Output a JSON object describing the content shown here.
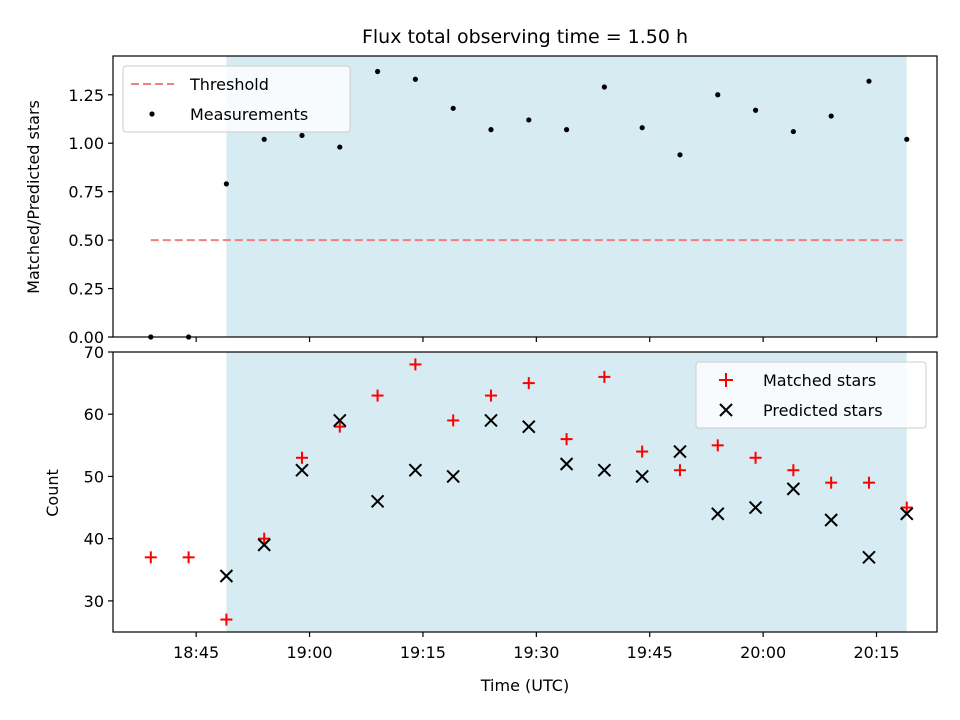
{
  "chart_data": [
    {
      "type": "scatter",
      "panel": "top",
      "title": "Flux total observing time = 1.50 h",
      "xlabel": "",
      "ylabel": "Matched/Predicted stars",
      "ylim": [
        0,
        1.45
      ],
      "xlim": [
        "18:34",
        "20:23"
      ],
      "yticks": [
        "0.00",
        "0.25",
        "0.50",
        "0.75",
        "1.00",
        "1.25"
      ],
      "ytick_values": [
        0,
        0.25,
        0.5,
        0.75,
        1.0,
        1.25
      ],
      "shaded_region": {
        "start": "18:49",
        "end": "20:19",
        "color": "#add8e6"
      },
      "threshold": {
        "name": "Threshold",
        "value": 0.5,
        "start": "18:39",
        "end": "20:19",
        "color": "#f08080"
      },
      "series": [
        {
          "name": "Measurements",
          "color": "#000000",
          "x": [
            "18:39",
            "18:44",
            "18:49",
            "18:54",
            "18:59",
            "19:04",
            "19:09",
            "19:14",
            "19:19",
            "19:24",
            "19:29",
            "19:34",
            "19:39",
            "19:44",
            "19:49",
            "19:54",
            "19:59",
            "20:04",
            "20:09",
            "20:14",
            "20:19"
          ],
          "y": [
            0.0,
            0.0,
            0.79,
            1.02,
            1.04,
            0.98,
            1.37,
            1.33,
            1.18,
            1.07,
            1.12,
            1.07,
            1.29,
            1.08,
            0.94,
            1.25,
            1.17,
            1.06,
            1.14,
            1.32,
            1.02
          ]
        }
      ],
      "legend": {
        "placement": "upper-left",
        "entries": [
          "Threshold",
          "Measurements"
        ]
      }
    },
    {
      "type": "scatter",
      "panel": "bottom",
      "title": "",
      "xlabel": "Time (UTC)",
      "ylabel": "Count",
      "ylim": [
        25,
        70
      ],
      "xlim": [
        "18:34",
        "20:23"
      ],
      "yticks": [
        "30",
        "40",
        "50",
        "60",
        "70"
      ],
      "ytick_values": [
        30,
        40,
        50,
        60,
        70
      ],
      "xticks": [
        "18:45",
        "19:00",
        "19:15",
        "19:30",
        "19:45",
        "20:00",
        "20:15"
      ],
      "shaded_region": {
        "start": "18:49",
        "end": "20:19",
        "color": "#add8e6"
      },
      "series": [
        {
          "name": "Matched stars",
          "marker": "+",
          "color": "#ff0000",
          "x": [
            "18:39",
            "18:44",
            "18:49",
            "18:54",
            "18:59",
            "19:04",
            "19:09",
            "19:14",
            "19:19",
            "19:24",
            "19:29",
            "19:34",
            "19:39",
            "19:44",
            "19:49",
            "19:54",
            "19:59",
            "20:04",
            "20:09",
            "20:14",
            "20:19"
          ],
          "y": [
            37,
            37,
            27,
            40,
            53,
            58,
            63,
            68,
            59,
            63,
            65,
            56,
            66,
            54,
            51,
            55,
            53,
            51,
            49,
            49,
            45
          ]
        },
        {
          "name": "Predicted stars",
          "marker": "x",
          "color": "#000000",
          "x": [
            "18:49",
            "18:54",
            "18:59",
            "19:04",
            "19:09",
            "19:14",
            "19:19",
            "19:24",
            "19:29",
            "19:34",
            "19:39",
            "19:44",
            "19:49",
            "19:54",
            "19:59",
            "20:04",
            "20:09",
            "20:14",
            "20:19"
          ],
          "y": [
            34,
            39,
            51,
            59,
            46,
            51,
            50,
            59,
            58,
            52,
            51,
            50,
            54,
            44,
            45,
            48,
            43,
            37,
            44
          ]
        }
      ],
      "legend": {
        "placement": "upper-right",
        "entries": [
          "Matched stars",
          "Predicted stars"
        ]
      }
    }
  ]
}
